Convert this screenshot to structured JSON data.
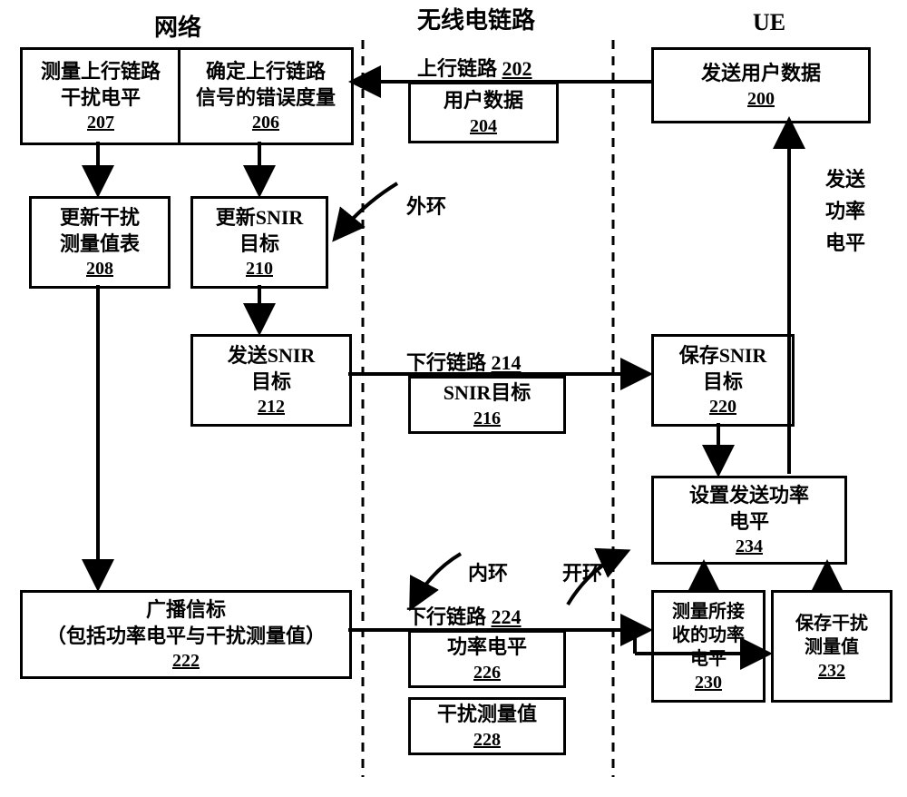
{
  "headers": {
    "network": "网络",
    "radio_link": "无线电链路",
    "ue": "UE"
  },
  "nodes": {
    "b200": {
      "title": "发送用户数据",
      "ref": "200"
    },
    "b204": {
      "title": "用户数据",
      "ref": "204"
    },
    "b206": {
      "title": "确定上行链路\n信号的错误度量",
      "ref": "206"
    },
    "b207": {
      "title": "测量上行链路\n干扰电平",
      "ref": "207"
    },
    "b208": {
      "title": "更新干扰\n测量值表",
      "ref": "208"
    },
    "b210": {
      "title": "更新SNIR\n目标",
      "ref": "210"
    },
    "b212": {
      "title": "发送SNIR\n目标",
      "ref": "212"
    },
    "b216": {
      "title": "SNIR目标",
      "ref": "216"
    },
    "b220": {
      "title": "保存SNIR\n目标",
      "ref": "220"
    },
    "b222": {
      "title": "广播信标\n（包括功率电平与干扰测量值）",
      "ref": "222"
    },
    "b226": {
      "title": "功率电平",
      "ref": "226"
    },
    "b228": {
      "title": "干扰测量值",
      "ref": "228"
    },
    "b230": {
      "title": "测量所接\n收的功率\n电平",
      "ref": "230"
    },
    "b232": {
      "title": "保存干扰\n测量值",
      "ref": "232"
    },
    "b234": {
      "title": "设置发送功率\n电平",
      "ref": "234"
    }
  },
  "labels": {
    "uplink": "上行链路",
    "uplink_ref": "202",
    "downlink1": "下行链路",
    "downlink1_ref": "214",
    "downlink2": "下行链路",
    "downlink2_ref": "224",
    "outer_loop": "外环",
    "inner_loop": "内环",
    "open_loop": "开环",
    "tx_power": "发送\n功率\n电平"
  },
  "style": {
    "border_color": "#000000",
    "border_width": 3,
    "dash_pattern": "10 8",
    "font_family": "SimSun",
    "box_bg": "#ffffff",
    "page_bg": "#ffffff",
    "arrowhead_size": 14
  }
}
